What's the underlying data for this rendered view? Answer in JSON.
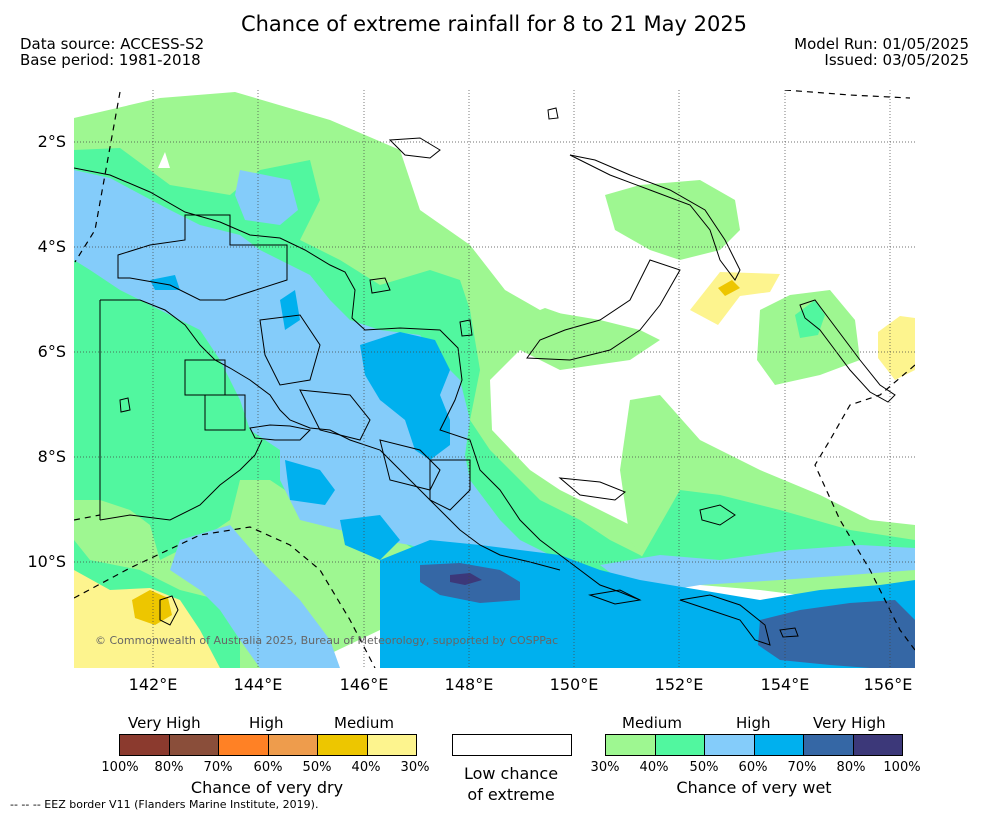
{
  "header": {
    "title": "Chance of extreme rainfall for 8 to 21 May 2025",
    "data_source": "Data source: ACCESS-S2",
    "base_period": "Base period: 1981-2018",
    "model_run": "Model Run: 01/05/2025",
    "issued": "Issued: 03/05/2025"
  },
  "map": {
    "lat_labels": [
      "2°S",
      "4°S",
      "6°S",
      "8°S",
      "10°S"
    ],
    "lon_labels": [
      "142°E",
      "144°E",
      "146°E",
      "148°E",
      "150°E",
      "152°E",
      "154°E",
      "156°E"
    ],
    "copyright": "© Commonwealth of Australia 2025, Bureau of Meteorology, supported by COSPPac"
  },
  "legend_dry": {
    "headings": [
      "Very High",
      "High",
      "Medium"
    ],
    "colors": [
      "#8b3a2e",
      "#8a4e3a",
      "#ff8125",
      "#ee9c4c",
      "#edc600",
      "#fdf48e"
    ],
    "percents": [
      "100%",
      "80%",
      "70%",
      "60%",
      "50%",
      "40%",
      "30%"
    ],
    "caption": "Chance of very dry"
  },
  "legend_low": {
    "caption_line1": "Low chance",
    "caption_line2": "of extreme"
  },
  "legend_wet": {
    "headings": [
      "Medium",
      "High",
      "Very High"
    ],
    "colors": [
      "#9ef791",
      "#51f79f",
      "#84ccfa",
      "#00b0ee",
      "#3567a5",
      "#3c3879"
    ],
    "percents": [
      "30%",
      "40%",
      "50%",
      "60%",
      "70%",
      "80%",
      "100%"
    ],
    "caption": "Chance of very wet"
  },
  "footnote": "--  --  -- EEZ border V11 (Flanders Marine Institute, 2019)."
}
